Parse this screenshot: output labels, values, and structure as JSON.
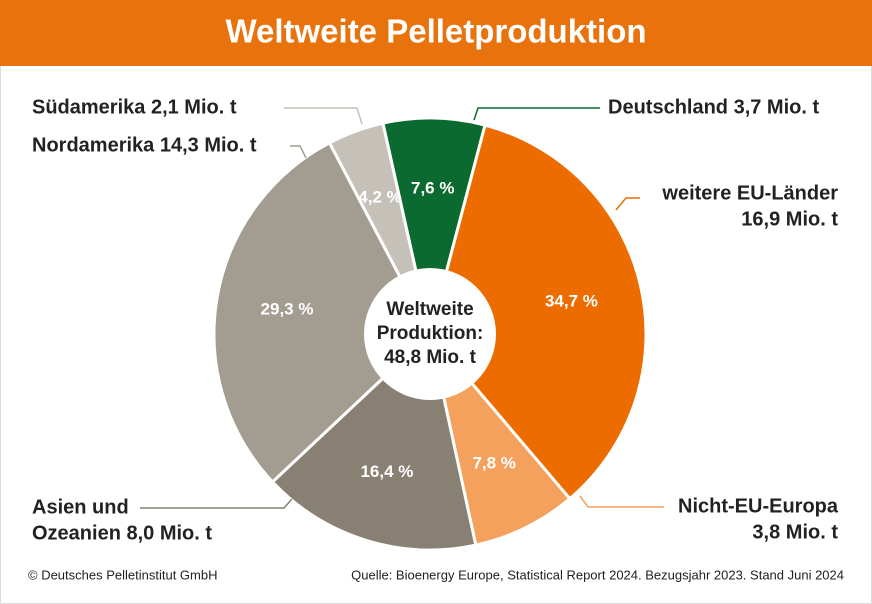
{
  "chart_data": {
    "type": "pie",
    "title": "Weltweite Pelletproduktion",
    "categories": [
      [
        "Deutschland 3,7 Mio. t"
      ],
      [
        "weitere EU-Länder",
        "16,9 Mio. t"
      ],
      [
        "Nicht-EU-Europa",
        "3,8 Mio. t"
      ],
      [
        "Asien und",
        "Ozeanien 8,0 Mio. t"
      ],
      [
        "Nordamerika 14,3 Mio. t"
      ],
      [
        "Südamerika 2,1 Mio. t"
      ]
    ],
    "values": [
      7.6,
      34.7,
      7.8,
      16.4,
      29.3,
      4.2
    ],
    "value_labels": [
      "7,6 %",
      "34,7 %",
      "7,8 %",
      "16,4 %",
      "29,3 %",
      "4,2 %"
    ],
    "colors": [
      "#0b6a2f",
      "#ec6c00",
      "#f4a15d",
      "#878073",
      "#a39d91",
      "#c5c1b8"
    ],
    "center_label": [
      "Weltweite",
      "Produktion:",
      "48,8 Mio. t"
    ],
    "source": "Quelle: Bioenergy Europe, Statistical Report 2024. Bezugsjahr 2023. Stand Juni 2024",
    "copyright": "© Deutsches Pelletinstitut GmbH"
  }
}
